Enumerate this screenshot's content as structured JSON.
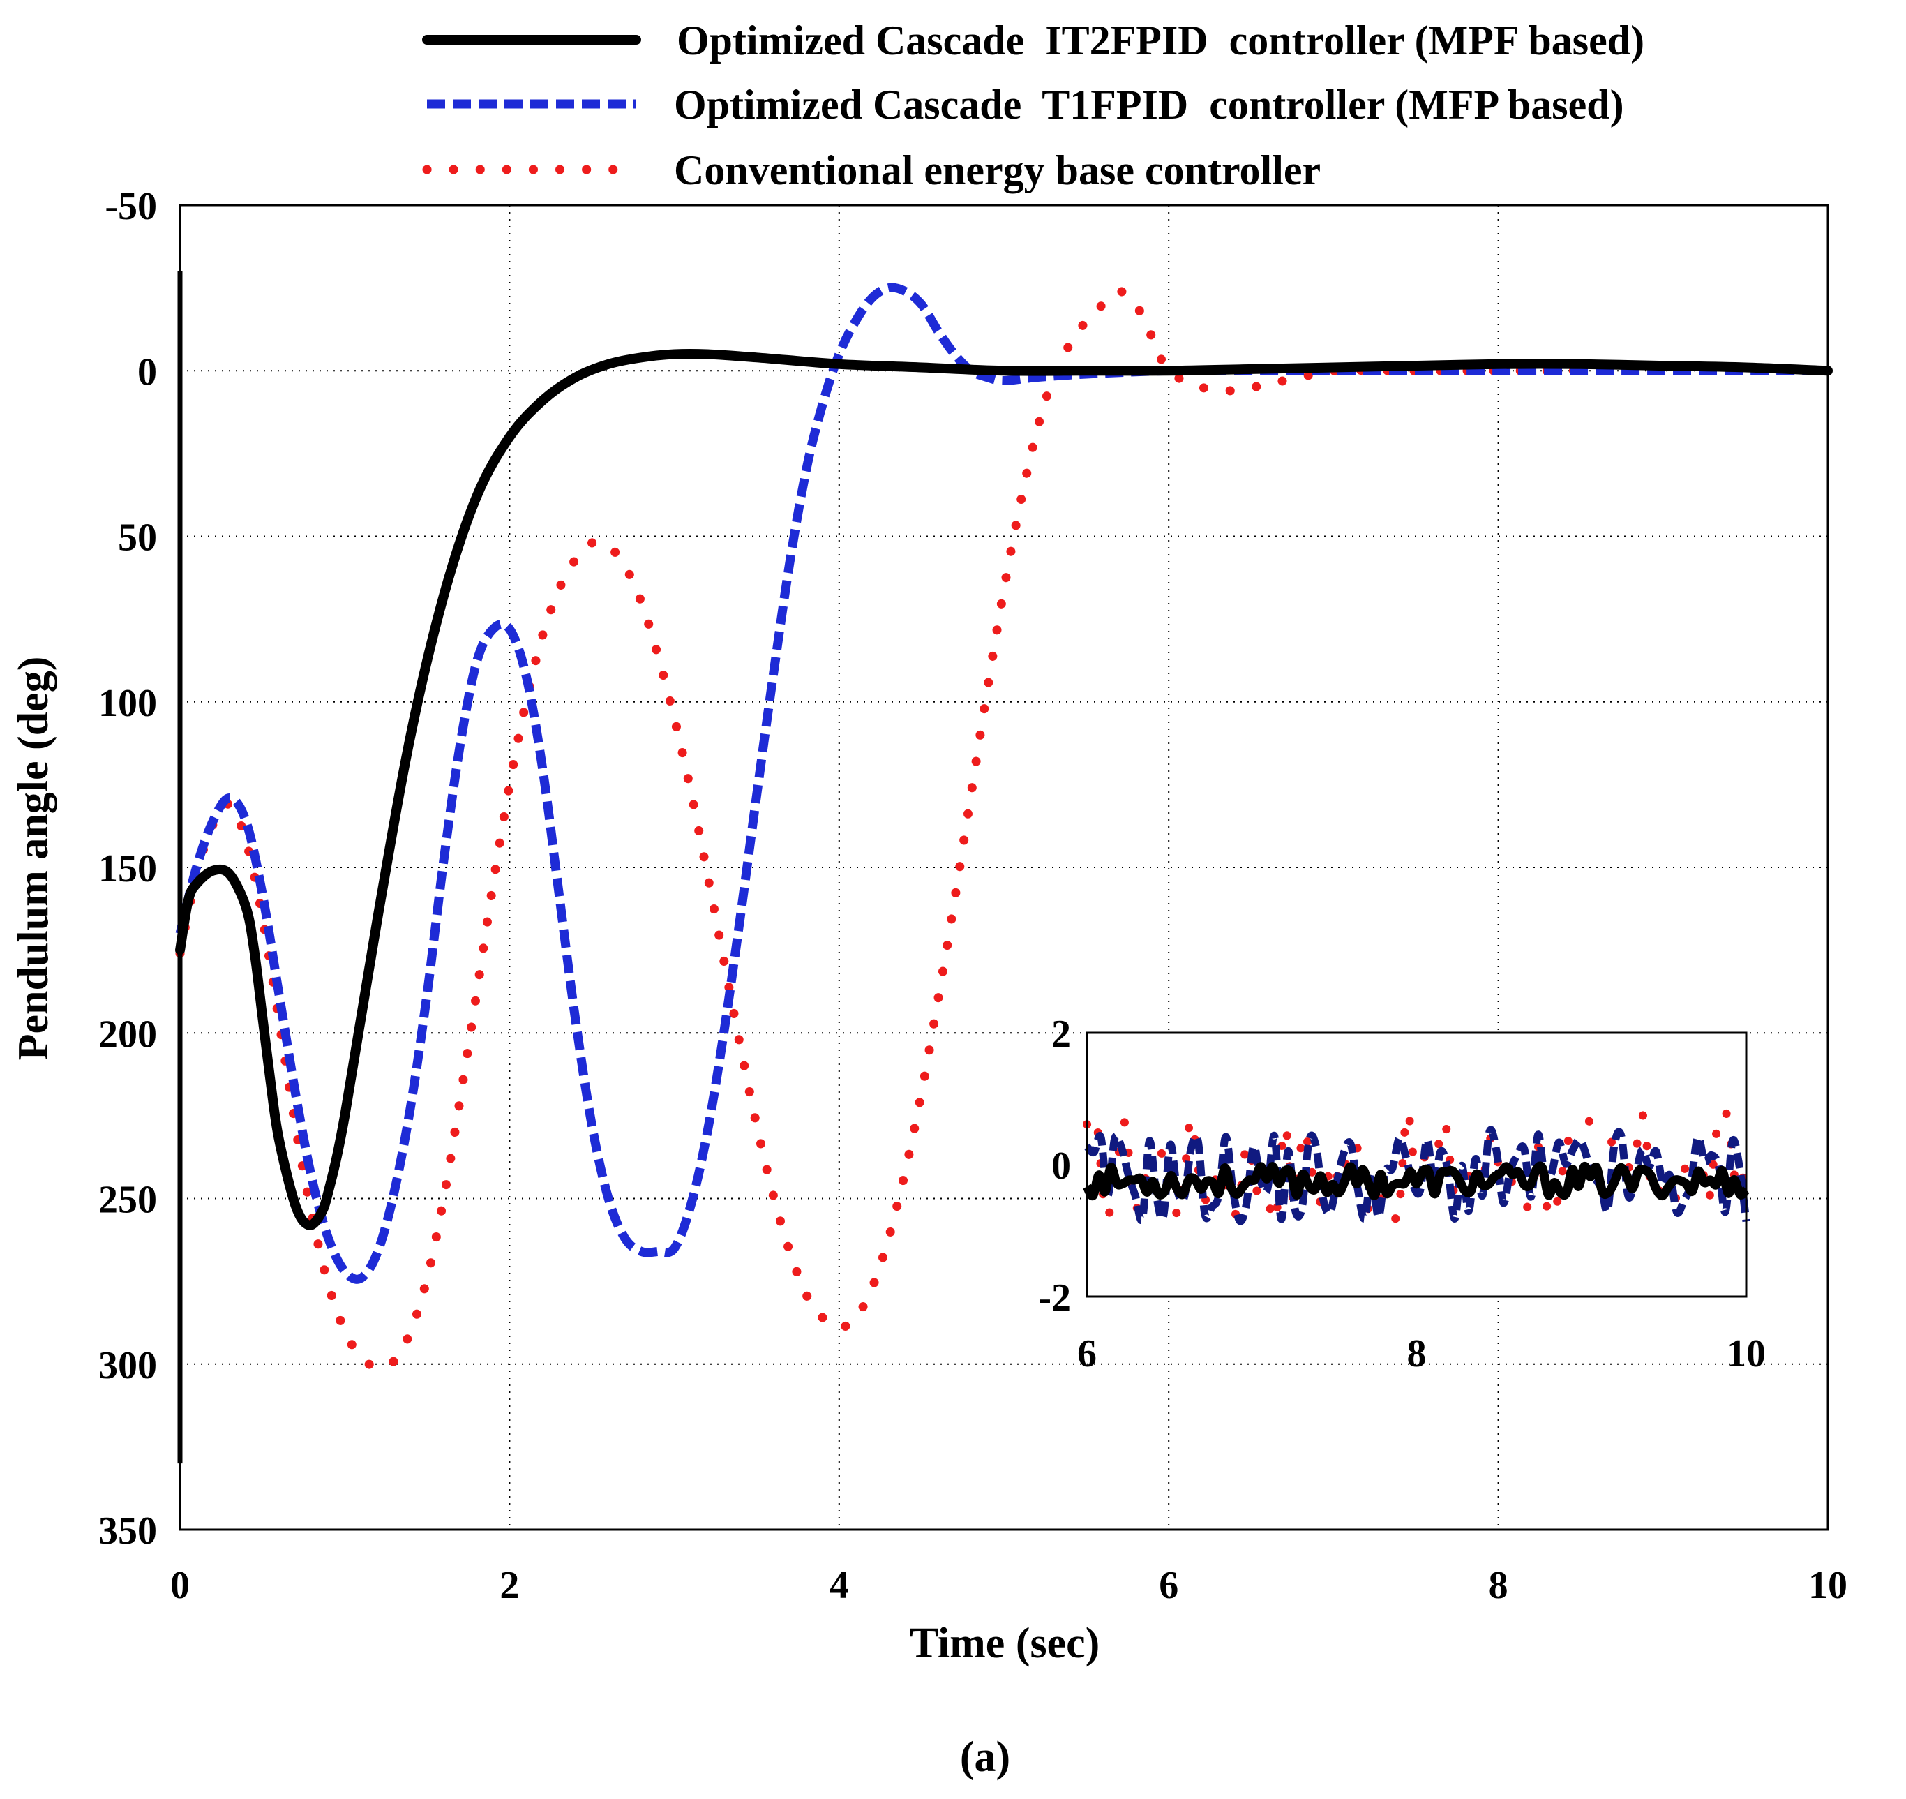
{
  "chart_data": {
    "type": "line",
    "xlabel": "Time (sec)",
    "ylabel": "Pendulum angle (deg)",
    "caption": "(a)",
    "xlim": [
      0,
      10
    ],
    "ylim": [
      -50,
      350
    ],
    "y_inverted": true,
    "grid": true,
    "legend_position": "top",
    "x_ticks": [
      "0",
      "2",
      "4",
      "6",
      "8",
      "10"
    ],
    "y_ticks": [
      "-50",
      "0",
      "50",
      "100",
      "150",
      "200",
      "250",
      "300",
      "350"
    ],
    "x_tick_values": [
      0,
      2,
      4,
      6,
      8,
      10
    ],
    "y_tick_values": [
      -50,
      0,
      50,
      100,
      150,
      200,
      250,
      300,
      350
    ],
    "series": [
      {
        "name": "Optimized Cascade  IT2FPID  controller (MPF based)",
        "style": "solid",
        "color": "#000000",
        "x": [
          0,
          0.05,
          0.1,
          0.2,
          0.3,
          0.4,
          0.45,
          0.5,
          0.55,
          0.6,
          0.7,
          0.78,
          0.85,
          0.9,
          1.0,
          1.2,
          1.4,
          1.6,
          1.8,
          2.0,
          2.2,
          2.4,
          2.6,
          2.8,
          3.0,
          3.2,
          3.5,
          4.0,
          4.5,
          5.0,
          5.5,
          6.0,
          6.5,
          7.0,
          7.5,
          8.0,
          8.5,
          9.0,
          9.5,
          10.0
        ],
        "y": [
          175,
          160,
          155,
          151,
          152,
          162,
          175,
          195,
          215,
          232,
          252,
          258,
          255,
          248,
          225,
          165,
          110,
          68,
          38,
          20,
          9,
          2,
          -2,
          -4,
          -5,
          -5,
          -4,
          -2,
          -1,
          0,
          0,
          0,
          -0.5,
          -1,
          -1.5,
          -2,
          -2,
          -1.5,
          -1,
          0
        ]
      },
      {
        "name": "Optimized Cascade  T1FPID  controller (MFP based)",
        "style": "dashed",
        "color": "#1e2bd6",
        "x": [
          0,
          0.1,
          0.2,
          0.3,
          0.4,
          0.5,
          0.6,
          0.7,
          0.8,
          0.9,
          1.0,
          1.1,
          1.2,
          1.3,
          1.4,
          1.5,
          1.6,
          1.7,
          1.8,
          1.9,
          2.0,
          2.1,
          2.2,
          2.3,
          2.4,
          2.5,
          2.6,
          2.7,
          2.8,
          2.9,
          3.0,
          3.1,
          3.2,
          3.3,
          3.4,
          3.5,
          3.6,
          3.7,
          3.8,
          3.9,
          4.0,
          4.1,
          4.2,
          4.3,
          4.4,
          4.5,
          4.6,
          4.7,
          4.8,
          4.9,
          5.0,
          5.2,
          5.5,
          6.0,
          6.5,
          7.0,
          8.0,
          9.0,
          10.0
        ],
        "y": [
          170,
          150,
          136,
          129,
          136,
          158,
          188,
          218,
          244,
          262,
          272,
          274,
          266,
          248,
          222,
          188,
          148,
          113,
          88,
          78,
          78,
          92,
          120,
          158,
          196,
          228,
          250,
          262,
          266,
          266,
          265,
          252,
          230,
          200,
          165,
          128,
          92,
          58,
          30,
          10,
          -5,
          -15,
          -22,
          -25,
          -24,
          -20,
          -12,
          -5,
          0,
          2,
          3,
          2,
          1,
          0,
          0,
          0,
          0,
          0,
          0
        ]
      },
      {
        "name": "Conventional energy base controller",
        "style": "dotted",
        "color": "#ee1c1c",
        "x": [
          0,
          0.1,
          0.2,
          0.3,
          0.4,
          0.5,
          0.6,
          0.7,
          0.8,
          0.9,
          1.0,
          1.1,
          1.2,
          1.3,
          1.4,
          1.5,
          1.6,
          1.7,
          1.8,
          1.9,
          2.0,
          2.1,
          2.2,
          2.3,
          2.4,
          2.5,
          2.6,
          2.7,
          2.8,
          2.9,
          3.0,
          3.1,
          3.2,
          3.3,
          3.4,
          3.5,
          3.6,
          3.7,
          3.8,
          3.9,
          4.0,
          4.1,
          4.2,
          4.3,
          4.4,
          4.5,
          4.6,
          4.7,
          4.8,
          4.9,
          5.0,
          5.1,
          5.2,
          5.3,
          5.4,
          5.5,
          5.6,
          5.7,
          5.8,
          5.9,
          6.0,
          6.2,
          6.4,
          6.6,
          6.8,
          7.0,
          7.5,
          8.0,
          8.5,
          9.0,
          9.5,
          10.0
        ],
        "y": [
          176,
          152,
          137,
          131,
          142,
          165,
          196,
          228,
          255,
          276,
          290,
          298,
          301,
          299,
          290,
          274,
          250,
          220,
          188,
          155,
          125,
          100,
          80,
          66,
          57,
          52,
          53,
          59,
          70,
          86,
          105,
          127,
          152,
          178,
          204,
          228,
          249,
          266,
          279,
          286,
          289,
          286,
          277,
          262,
          242,
          218,
          190,
          160,
          128,
          96,
          66,
          40,
          18,
          2,
          -8,
          -15,
          -20,
          -24,
          -20,
          -10,
          0,
          5,
          6,
          4,
          2,
          0,
          0,
          0,
          0,
          0,
          0,
          0
        ]
      }
    ],
    "inset": {
      "xlim": [
        6,
        10
      ],
      "ylim": [
        -2,
        2
      ],
      "x_ticks": [
        "6",
        "8",
        "10"
      ],
      "y_ticks": [
        "2",
        "0",
        "-2"
      ],
      "x_tick_values": [
        6,
        8,
        10
      ],
      "y_tick_values": [
        2,
        0,
        -2
      ]
    }
  },
  "colors": {
    "black_series": "#000000",
    "blue_series": "#1e2bd6",
    "blue_inset": "#101a80",
    "red_series": "#ee1c1c"
  }
}
